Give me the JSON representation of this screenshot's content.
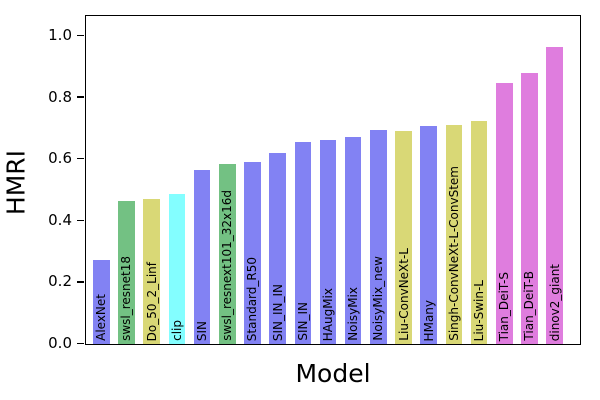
{
  "chart_data": {
    "type": "bar",
    "title": "",
    "xlabel": "Model",
    "ylabel": "HMRI",
    "categories": [
      "AlexNet",
      "swsl_resnet18",
      "Do_50_2_Linf",
      "clip",
      "SIN",
      "swsl_resnext101_32x16d",
      "Standard_R50",
      "SIN_IN_IN",
      "SIN_IN",
      "HAugMix",
      "NoisyMix",
      "NoisyMix_new",
      "Liu-ConvNeXt-L",
      "HMany",
      "Singh-ConvNeXt-L-ConvStem",
      "Liu-Swin-L",
      "Tian_DeiT-S",
      "Tian_DeiT-B",
      "dinov2_giant"
    ],
    "values": [
      0.273,
      0.465,
      0.47,
      0.488,
      0.565,
      0.585,
      0.59,
      0.62,
      0.658,
      0.663,
      0.673,
      0.695,
      0.693,
      0.707,
      0.712,
      0.725,
      0.847,
      0.882,
      0.965
    ],
    "bar_colors": [
      "#8282f3",
      "#73c183",
      "#d9d876",
      "#83feff",
      "#8282f3",
      "#73c183",
      "#8282f3",
      "#8282f3",
      "#8282f3",
      "#8282f3",
      "#8282f3",
      "#8282f3",
      "#d9d876",
      "#8282f3",
      "#d9d876",
      "#d9d876",
      "#df7dde",
      "#df7dde",
      "#df7dde"
    ],
    "bar_label_color": "#000000",
    "bar_label_rotation_deg": 90,
    "yticks": [
      0.0,
      0.2,
      0.4,
      0.6,
      0.8,
      1.0
    ],
    "ytick_labels": [
      "0.0",
      "0.2",
      "0.4",
      "0.6",
      "0.8",
      "1.0"
    ],
    "ylim": [
      0,
      1.0625
    ],
    "grid": false,
    "legend": null,
    "axis_color": "#000000",
    "background_color": "#ffffff"
  }
}
